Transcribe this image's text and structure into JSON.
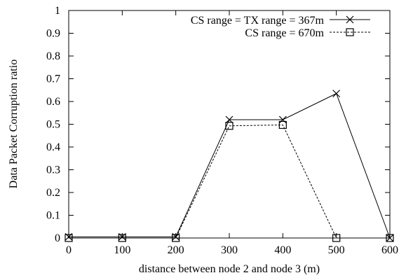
{
  "chart_data": {
    "type": "line",
    "title": "",
    "xlabel": "distance between node 2 and node 3 (m)",
    "ylabel": "Data Packet Corruption ratio",
    "x": [
      0,
      100,
      200,
      300,
      400,
      500,
      600
    ],
    "xlim": [
      0,
      600
    ],
    "ylim": [
      0,
      1
    ],
    "xticks": [
      0,
      100,
      200,
      300,
      400,
      500,
      600
    ],
    "yticks": [
      0,
      0.1,
      0.2,
      0.3,
      0.4,
      0.5,
      0.6,
      0.7,
      0.8,
      0.9,
      1
    ],
    "grid": false,
    "legend_position": "top-right",
    "series": [
      {
        "name": "CS range = TX range = 367m",
        "values": [
          0.005,
          0.005,
          0.005,
          0.52,
          0.52,
          0.635,
          0.0
        ],
        "marker": "x",
        "line": "solid",
        "color": "#000000"
      },
      {
        "name": "CS range = 670m",
        "values": [
          0.0,
          0.0,
          0.0,
          0.493,
          0.497,
          0.0,
          0.0
        ],
        "marker": "square",
        "line": "dashed",
        "color": "#000000"
      }
    ]
  }
}
